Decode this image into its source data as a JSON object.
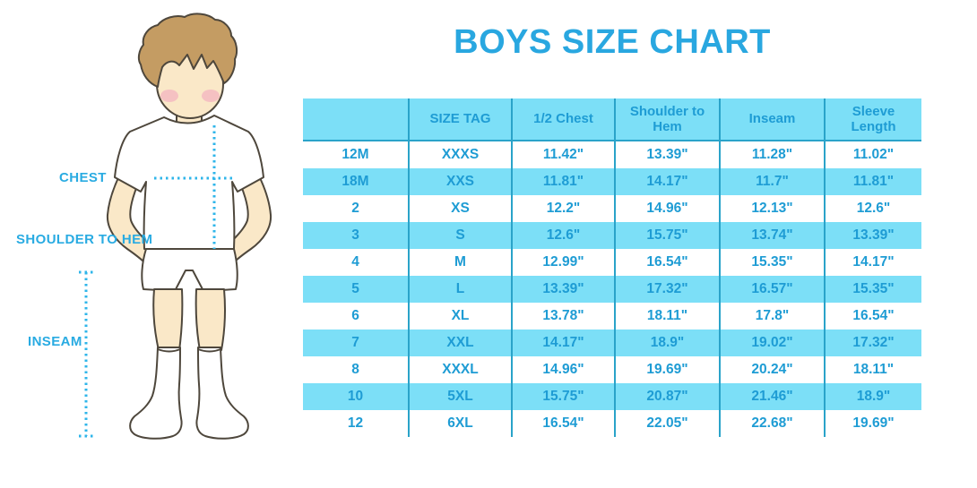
{
  "title": "BOYS SIZE CHART",
  "diagram": {
    "figure": "boy-cartoon-standing-front",
    "chest_label": "CHEST",
    "shoulder_to_hem_label": "SHOULDER TO HEM",
    "inseam_label": "INSEAM"
  },
  "chart_data": {
    "type": "table",
    "title": "BOYS SIZE CHART",
    "columns": [
      "",
      "SIZE TAG",
      "1/2 Chest",
      "Shoulder to Hem",
      "Inseam",
      "Sleeve Length"
    ],
    "rows": [
      [
        "12M",
        "XXXS",
        "11.42\"",
        "13.39\"",
        "11.28\"",
        "11.02\""
      ],
      [
        "18M",
        "XXS",
        "11.81\"",
        "14.17\"",
        "11.7\"",
        "11.81\""
      ],
      [
        "2",
        "XS",
        "12.2\"",
        "14.96\"",
        "12.13\"",
        "12.6\""
      ],
      [
        "3",
        "S",
        "12.6\"",
        "15.75\"",
        "13.74\"",
        "13.39\""
      ],
      [
        "4",
        "M",
        "12.99\"",
        "16.54\"",
        "15.35\"",
        "14.17\""
      ],
      [
        "5",
        "L",
        "13.39\"",
        "17.32\"",
        "16.57\"",
        "15.35\""
      ],
      [
        "6",
        "XL",
        "13.78\"",
        "18.11\"",
        "17.8\"",
        "16.54\""
      ],
      [
        "7",
        "XXL",
        "14.17\"",
        "18.9\"",
        "19.02\"",
        "17.32\""
      ],
      [
        "8",
        "XXXL",
        "14.96\"",
        "19.69\"",
        "20.24\"",
        "18.11\""
      ],
      [
        "10",
        "5XL",
        "15.75\"",
        "20.87\"",
        "21.46\"",
        "18.9\""
      ],
      [
        "12",
        "6XL",
        "16.54\"",
        "22.05\"",
        "22.68\"",
        "19.69\""
      ]
    ],
    "row_striping": [
      "white",
      "light-blue-alternating"
    ],
    "legend_position": "none",
    "grid": "vertical-column-separators-only"
  },
  "colors": {
    "accent_blue": "#29A7E0",
    "table_text_blue": "#1E9CD4",
    "label_blue": "#29ABE2",
    "stripe_blue": "#7CDFF7",
    "grid_line_blue": "#2AA3C9",
    "dotted_line_blue": "#2EB5EA",
    "skin": "#FAE8C8",
    "hair": "#C49C63",
    "blush": "#F2ACBE",
    "outline": "#4E473C"
  }
}
